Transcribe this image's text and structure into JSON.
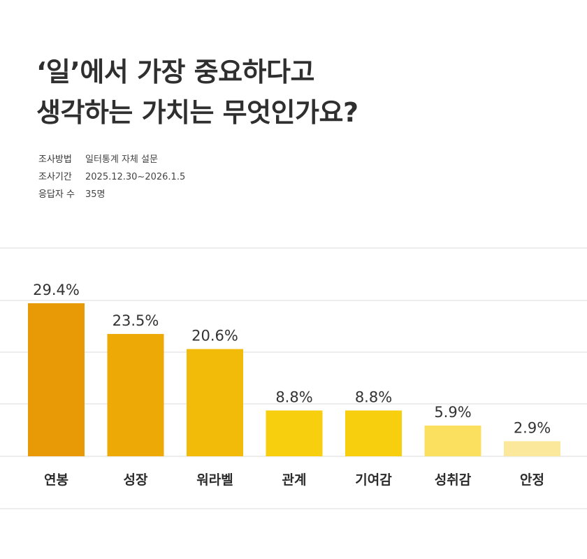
{
  "title": {
    "line1": "‘일’에서 가장 중요하다고",
    "line2": "생각하는 가치는 무엇인가요?"
  },
  "meta": [
    {
      "label": "조사방법",
      "value": "일터통계 자체 설문"
    },
    {
      "label": "조사기간",
      "value": "2025.12.30~2026.1.5"
    },
    {
      "label": "응답자 수",
      "value": "35명"
    }
  ],
  "chart_data": {
    "type": "bar",
    "categories": [
      "연봉",
      "성장",
      "워라벨",
      "관계",
      "기여감",
      "성취감",
      "안정"
    ],
    "values": [
      29.4,
      23.5,
      20.6,
      8.8,
      8.8,
      5.9,
      2.9
    ],
    "value_labels": [
      "29.4%",
      "23.5%",
      "20.6%",
      "8.8%",
      "8.8%",
      "5.9%",
      "2.9%"
    ],
    "unit": "%",
    "ylim": [
      0,
      40
    ],
    "grid": true,
    "colors": [
      "#E89A06",
      "#EDAA07",
      "#F2BB0A",
      "#F7CF0F",
      "#F7CF0F",
      "#FBDF5E",
      "#FCE89A"
    ]
  }
}
